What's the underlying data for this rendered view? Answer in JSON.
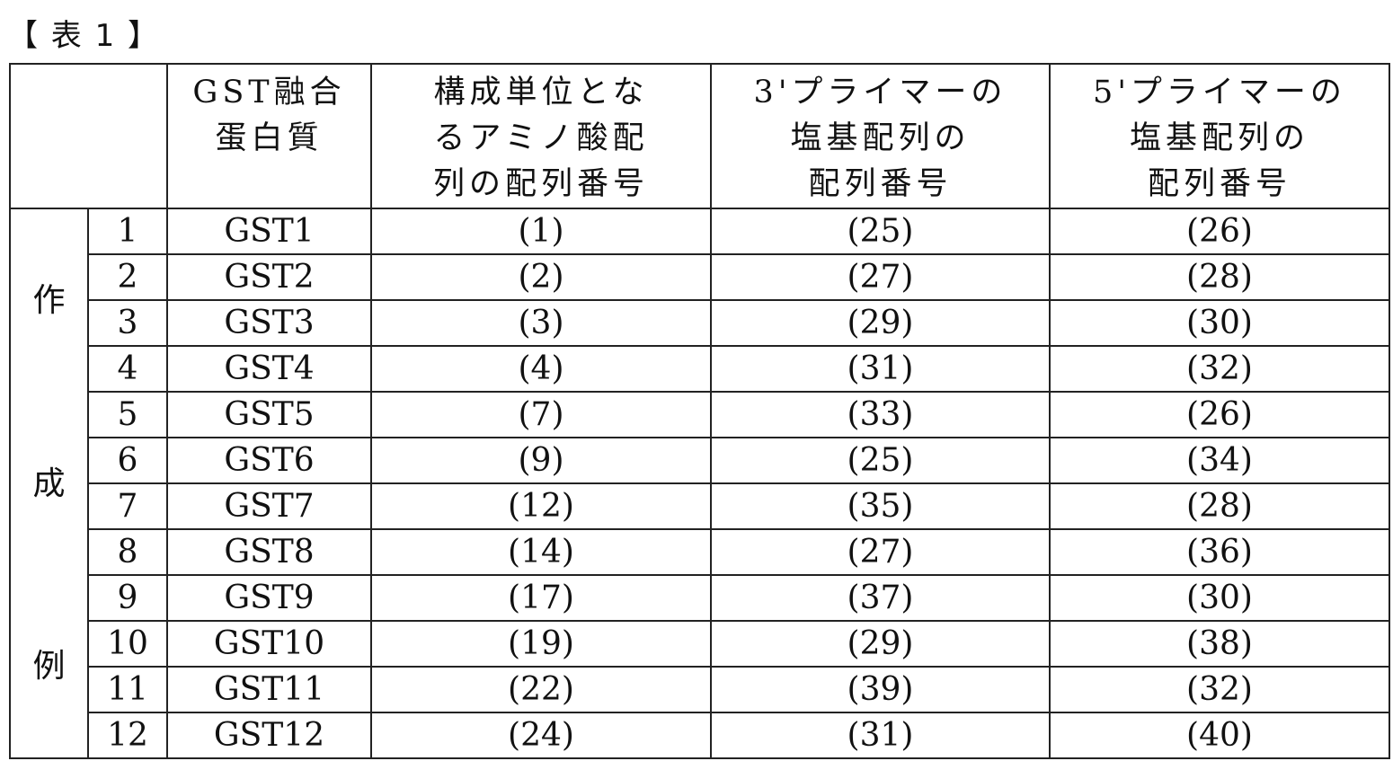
{
  "caption": "【 表 1 】",
  "headers": [
    "GST融合\n蛋白質",
    "構成単位とな\nるアミノ酸配\n列の配列番号",
    "3'プライマーの\n塩基配列の\n配列番号",
    "5'プライマーの\n塩基配列の\n配列番号"
  ],
  "side_label": [
    "作",
    "成",
    "例"
  ],
  "rows": [
    [
      "1",
      "GST1",
      "(1)",
      "(25)",
      "(26)"
    ],
    [
      "2",
      "GST2",
      "(2)",
      "(27)",
      "(28)"
    ],
    [
      "3",
      "GST3",
      "(3)",
      "(29)",
      "(30)"
    ],
    [
      "4",
      "GST4",
      "(4)",
      "(31)",
      "(32)"
    ],
    [
      "5",
      "GST5",
      "(7)",
      "(33)",
      "(26)"
    ],
    [
      "6",
      "GST6",
      "(9)",
      "(25)",
      "(34)"
    ],
    [
      "7",
      "GST7",
      "(12)",
      "(35)",
      "(28)"
    ],
    [
      "8",
      "GST8",
      "(14)",
      "(27)",
      "(36)"
    ],
    [
      "9",
      "GST9",
      "(17)",
      "(37)",
      "(30)"
    ],
    [
      "10",
      "GST10",
      "(19)",
      "(29)",
      "(38)"
    ],
    [
      "11",
      "GST11",
      "(22)",
      "(39)",
      "(32)"
    ],
    [
      "12",
      "GST12",
      "(24)",
      "(31)",
      "(40)"
    ]
  ]
}
